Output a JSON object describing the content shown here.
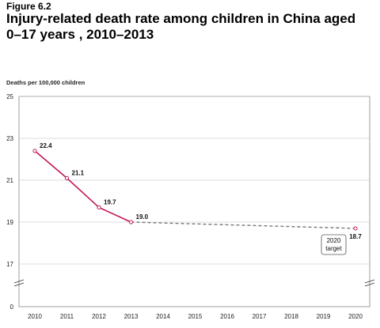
{
  "figure_label": "Figure 6.2",
  "title": "Injury-related death rate among children in China aged 0–17 years , 2010–2013",
  "colors": {
    "accent": "#c2185b",
    "projection": "#777777",
    "grid": "#bbbbbb"
  },
  "chart_data": {
    "type": "line",
    "title": "Injury-related death rate among children in China aged 0–17 years , 2010–2013",
    "ylabel": "Deaths per 100,000 children",
    "xlabel": "",
    "x": [
      "2010",
      "2011",
      "2012",
      "2013",
      "2014",
      "2015",
      "2016",
      "2017",
      "2018",
      "2019",
      "2020"
    ],
    "y_ticks": [
      "25",
      "23",
      "21",
      "19",
      "17",
      "0"
    ],
    "ylim": [
      15,
      25
    ],
    "axis_break": true,
    "grid": true,
    "series": [
      {
        "x": [
          "2010",
          "2011",
          "2012",
          "2013"
        ],
        "values": [
          22.4,
          21.1,
          19.7,
          19.0
        ],
        "labels": [
          "22.4",
          "21.1",
          "19.7",
          "19.0"
        ],
        "style": "solid"
      },
      {
        "x": [
          "2013",
          "2020"
        ],
        "values": [
          19.0,
          18.7
        ],
        "labels": [
          "",
          "18.7"
        ],
        "style": "dashed"
      }
    ],
    "annotation": {
      "line1": "2020",
      "line2": "target"
    }
  }
}
